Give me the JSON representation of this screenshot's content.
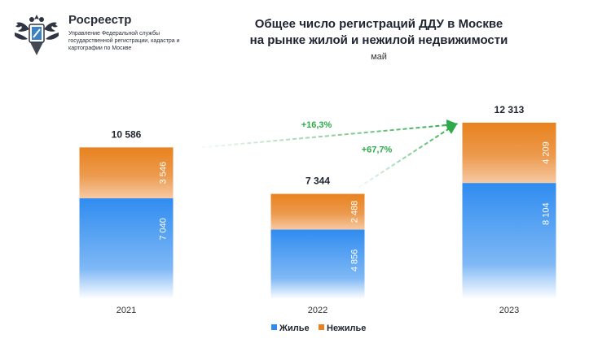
{
  "header": {
    "org_name": "Росреестр",
    "org_subtitle": "Управление Федеральной службы государственной регистрации, кадастра и картографии по Москве"
  },
  "chart_data": {
    "type": "bar",
    "stacked": true,
    "title_lines": [
      "Общее число регистраций ДДУ в Москве",
      "на рынке жилой и нежилой недвижимости"
    ],
    "subtitle": "май",
    "categories": [
      "2021",
      "2022",
      "2023"
    ],
    "series": [
      {
        "name": "Жилье",
        "values": [
          7040,
          4856,
          8104
        ],
        "labels": [
          "7 040",
          "4 856",
          "8 104"
        ],
        "color": "#2f8cf0"
      },
      {
        "name": "Нежилье",
        "values": [
          3546,
          2488,
          4209
        ],
        "labels": [
          "3 546",
          "2 488",
          "4 209"
        ],
        "color": "#e8821e"
      }
    ],
    "totals": [
      "10 586",
      "7 344",
      "12 313"
    ],
    "annotations": [
      {
        "from": "2021",
        "to": "2023",
        "text": "+16,3%"
      },
      {
        "from": "2022",
        "to": "2023",
        "text": "+67,7%"
      }
    ],
    "ylim": [
      0,
      13500
    ],
    "legend_position": "bottom",
    "annotation_color": "#2eaa4a"
  }
}
